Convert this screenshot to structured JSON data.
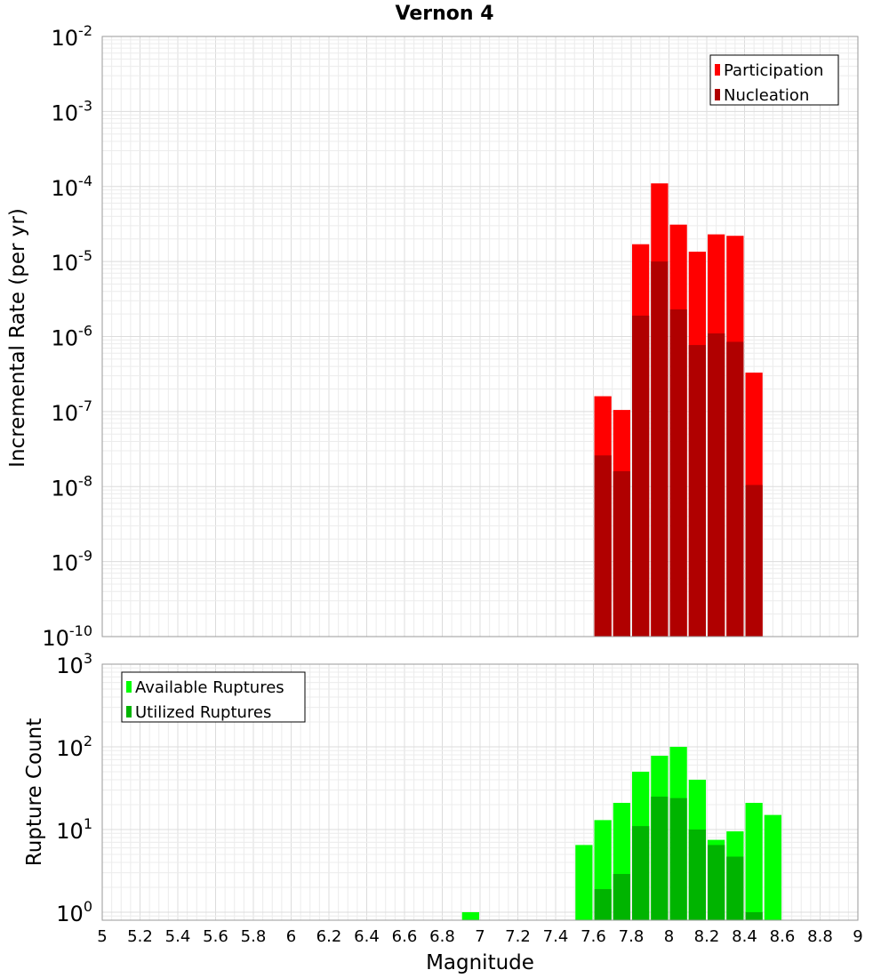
{
  "chart_data": [
    {
      "type": "bar",
      "title": "Vernon 4",
      "xlabel": "",
      "ylabel": "Incremental Rate (per yr)",
      "yscale": "log",
      "ylim": [
        1e-10,
        0.01
      ],
      "xlim": [
        5,
        9
      ],
      "x": [
        7.65,
        7.75,
        7.85,
        7.95,
        8.05,
        8.15,
        8.25,
        8.35,
        8.45
      ],
      "series": [
        {
          "name": "Participation",
          "color": "#ff0000",
          "values": [
            1.6e-07,
            1.05e-07,
            1.7e-05,
            0.00011,
            3.1e-05,
            1.35e-05,
            2.3e-05,
            2.2e-05,
            3.3e-07
          ]
        },
        {
          "name": "Nucleation",
          "color": "#b00000",
          "values": [
            2.6e-08,
            1.6e-08,
            1.9e-06,
            1e-05,
            2.3e-06,
            7.7e-07,
            1.1e-06,
            8.5e-07,
            1.05e-08
          ]
        }
      ],
      "legend_position": "top-right",
      "ytick_exponents": [
        -2,
        -3,
        -4,
        -5,
        -6,
        -7,
        -8,
        -9,
        -10
      ]
    },
    {
      "type": "bar",
      "title": "",
      "xlabel": "Magnitude",
      "ylabel": "Rupture Count",
      "yscale": "log",
      "ylim": [
        0.8,
        1000
      ],
      "xlim": [
        5,
        9
      ],
      "x": [
        6.95,
        7.55,
        7.65,
        7.75,
        7.85,
        7.95,
        8.05,
        8.15,
        8.25,
        8.35,
        8.45,
        8.55
      ],
      "series": [
        {
          "name": "Available Ruptures",
          "color": "#00ff00",
          "values": [
            1,
            6.5,
            13,
            21,
            50,
            78,
            100,
            40,
            7.5,
            9.5,
            21,
            15
          ]
        },
        {
          "name": "Utilized Ruptures",
          "color": "#00b400",
          "values": [
            0,
            0,
            1.9,
            2.9,
            11,
            25,
            24,
            10,
            6.5,
            4.7,
            1,
            0
          ]
        }
      ],
      "legend_position": "top-left",
      "ytick_exponents": [
        3,
        2,
        1,
        0
      ],
      "xticks": [
        "5",
        "5.2",
        "5.4",
        "5.6",
        "5.8",
        "6",
        "6.2",
        "6.4",
        "6.6",
        "6.8",
        "7",
        "7.2",
        "7.4",
        "7.6",
        "7.8",
        "8",
        "8.2",
        "8.4",
        "8.6",
        "8.8",
        "9"
      ]
    }
  ]
}
